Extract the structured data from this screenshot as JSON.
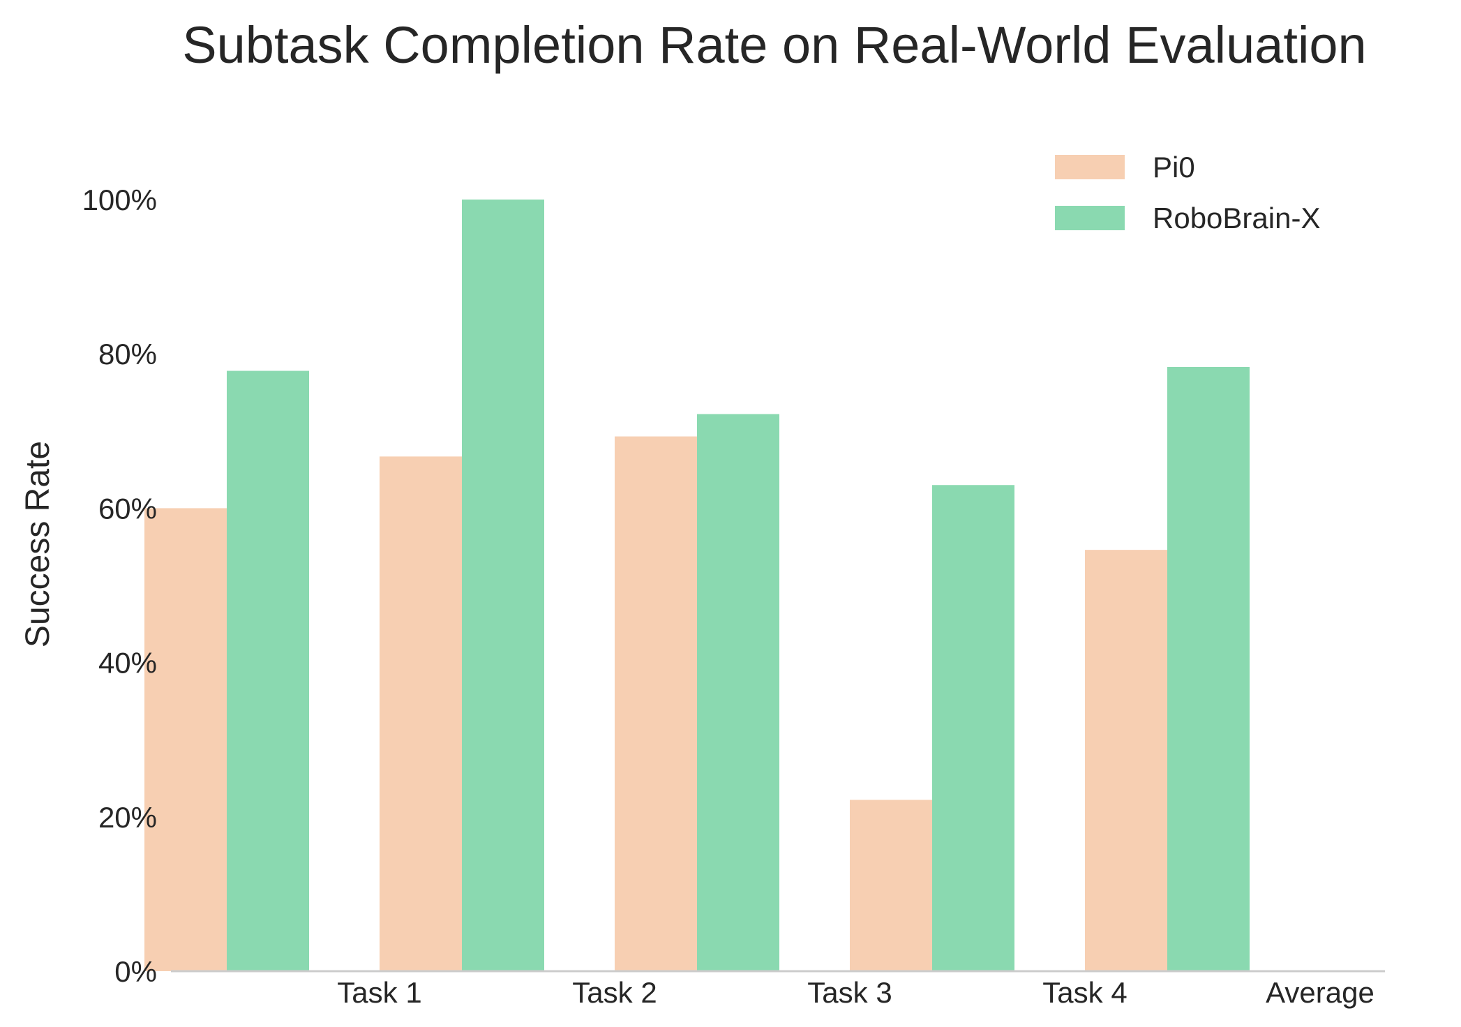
{
  "chart_data": {
    "type": "bar",
    "title": "Subtask Completion Rate on Real-World Evaluation",
    "xlabel": "",
    "ylabel": "Success Rate",
    "categories": [
      "Task 1",
      "Task 2",
      "Task 3",
      "Task 4",
      "Average"
    ],
    "series": [
      {
        "name": "Pi0",
        "values": [
          60,
          66.7,
          69.3,
          22.2,
          54.6
        ],
        "color": "#f7cfb2"
      },
      {
        "name": "RoboBrain-X",
        "values": [
          77.8,
          100,
          72.2,
          63,
          78.3
        ],
        "color": "#8ad9b0"
      }
    ],
    "ylim": [
      0,
      100
    ],
    "yticks": [
      "0%",
      "20%",
      "40%",
      "60%",
      "80%",
      "100%"
    ],
    "ytick_values": [
      0,
      20,
      40,
      60,
      80,
      100
    ],
    "grid": false,
    "legend_position": "top-right"
  }
}
